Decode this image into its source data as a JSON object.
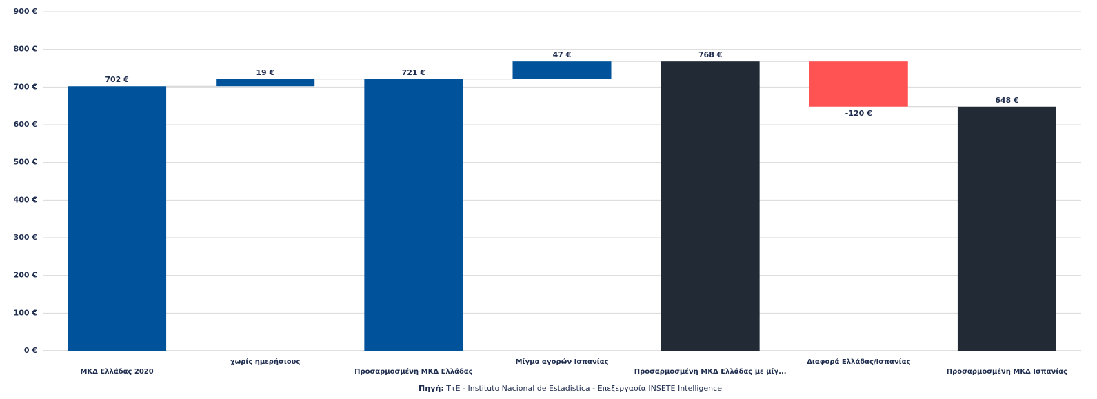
{
  "chart_data": {
    "type": "waterfall",
    "categories": [
      "ΜΚΔ Ελλάδας 2020",
      "χωρίς ημερήσιους",
      "Προσαρμοσμένη ΜΚΔ Ελλάδας",
      "Μίγμα αγορών Ισπανίας",
      "Προσαρμοσμένη ΜΚΔ Ελλάδας με μίγ...",
      "Διαφορά Ελλάδας/Ισπανίας",
      "Προσαρμοσμένη ΜΚΔ Ισπανίας"
    ],
    "values": [
      702,
      19,
      721,
      47,
      768,
      -120,
      648
    ],
    "value_labels": [
      "702 €",
      "19 €",
      "721 €",
      "47 €",
      "768 €",
      "-120 €",
      "648 €"
    ],
    "totals": [
      true,
      false,
      true,
      false,
      true,
      false,
      true
    ],
    "colors": [
      "#00529b",
      "#00529b",
      "#00529b",
      "#00529b",
      "#222a35",
      "#ff5353",
      "#222a35"
    ],
    "ylim": [
      0,
      900
    ],
    "yticks": [
      {
        "value": 0,
        "label": "0 €"
      },
      {
        "value": 100,
        "label": "100 €"
      },
      {
        "value": 200,
        "label": "200 €"
      },
      {
        "value": 300,
        "label": "300 €"
      },
      {
        "value": 400,
        "label": "400 €"
      },
      {
        "value": 500,
        "label": "500 €"
      },
      {
        "value": 600,
        "label": "600 €"
      },
      {
        "value": 700,
        "label": "700 €"
      },
      {
        "value": 800,
        "label": "800 €"
      },
      {
        "value": 900,
        "label": "900 €"
      }
    ],
    "grid": true,
    "source_label": "Πηγή:",
    "source_text": "ΤτΕ - Instituto Nacional de Estadistica - Επεξεργασία INSETE Intelligence"
  }
}
